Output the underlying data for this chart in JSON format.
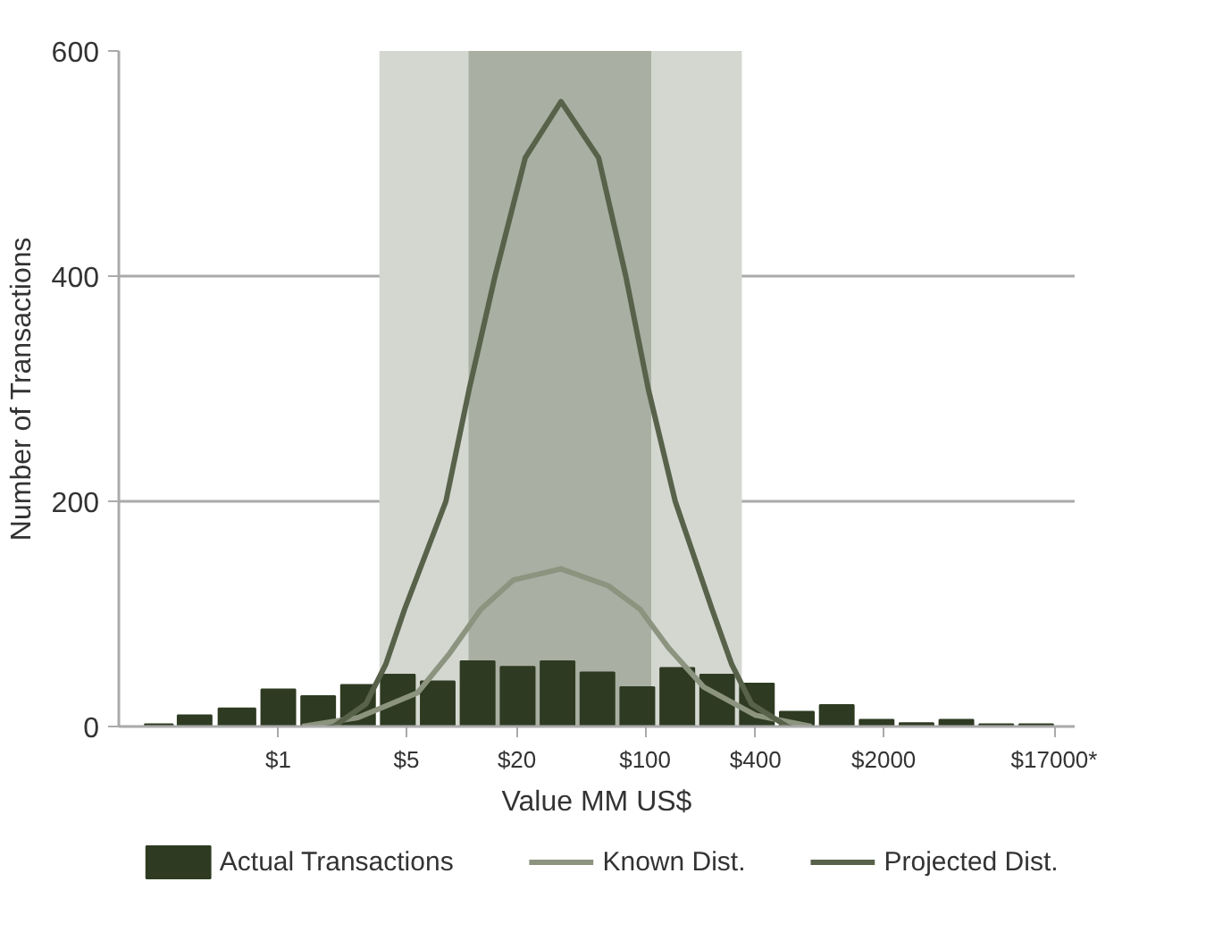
{
  "chart_data": {
    "type": "bar",
    "xlabel": "Value MM US$",
    "ylabel": "Number of Transactions",
    "log": "x",
    "xlim": [
      0.135,
      22000
    ],
    "ylim": [
      0,
      600
    ],
    "yticks": [
      0,
      200,
      400,
      600
    ],
    "xticks": [
      {
        "value": 1,
        "label": "$1"
      },
      {
        "value": 5,
        "label": "$5"
      },
      {
        "value": 20,
        "label": "$20"
      },
      {
        "value": 100,
        "label": "$100"
      },
      {
        "value": 400,
        "label": "$400"
      },
      {
        "value": 2000,
        "label": "$2000"
      },
      {
        "value": 17000,
        "label": "$17000*"
      }
    ],
    "grid": "y",
    "legend": "bottom",
    "bands": [
      {
        "axis": "x",
        "from": 3.56,
        "to": 337,
        "color": "#d4d7d0"
      },
      {
        "axis": "x",
        "from": 10.9,
        "to": 108,
        "color": "#a9afa2"
      }
    ],
    "series": [
      {
        "name": "Actual Transactions",
        "color": "#2e3b22",
        "x": [
          0.223,
          0.337,
          0.606,
          1,
          1.65,
          2.72,
          4.49,
          7.4,
          12.2,
          20.2,
          33.3,
          55,
          90.6,
          150,
          247,
          407,
          672,
          1110,
          1830,
          3020,
          4980,
          8220,
          13560
        ],
        "values": [
          2,
          10,
          16,
          33,
          27,
          37,
          46,
          40,
          58,
          53,
          58,
          48,
          35,
          52,
          46,
          38,
          13,
          19,
          6,
          3,
          6,
          2,
          2
        ]
      },
      {
        "name": "Known Dist.",
        "type": "line",
        "color": "#8c9480",
        "x": [
          1.35,
          2.72,
          5.75,
          8.6,
          12.7,
          19.1,
          34.8,
          63,
          94,
          134,
          209,
          400,
          807
        ],
        "values": [
          0,
          8,
          30,
          65,
          104,
          130,
          140,
          125,
          104,
          70,
          35,
          10,
          0
        ]
      },
      {
        "name": "Projected Dist.",
        "type": "line",
        "color": "#58624a",
        "x": [
          2.01,
          3.0,
          3.85,
          4.88,
          8.2,
          11.0,
          15.2,
          22.2,
          34.8,
          55.8,
          78.5,
          104,
          146,
          232,
          297,
          381,
          596
        ],
        "values": [
          0,
          20,
          55,
          104,
          200,
          300,
          400,
          505,
          555,
          505,
          400,
          300,
          200,
          104,
          55,
          20,
          0
        ]
      }
    ]
  }
}
